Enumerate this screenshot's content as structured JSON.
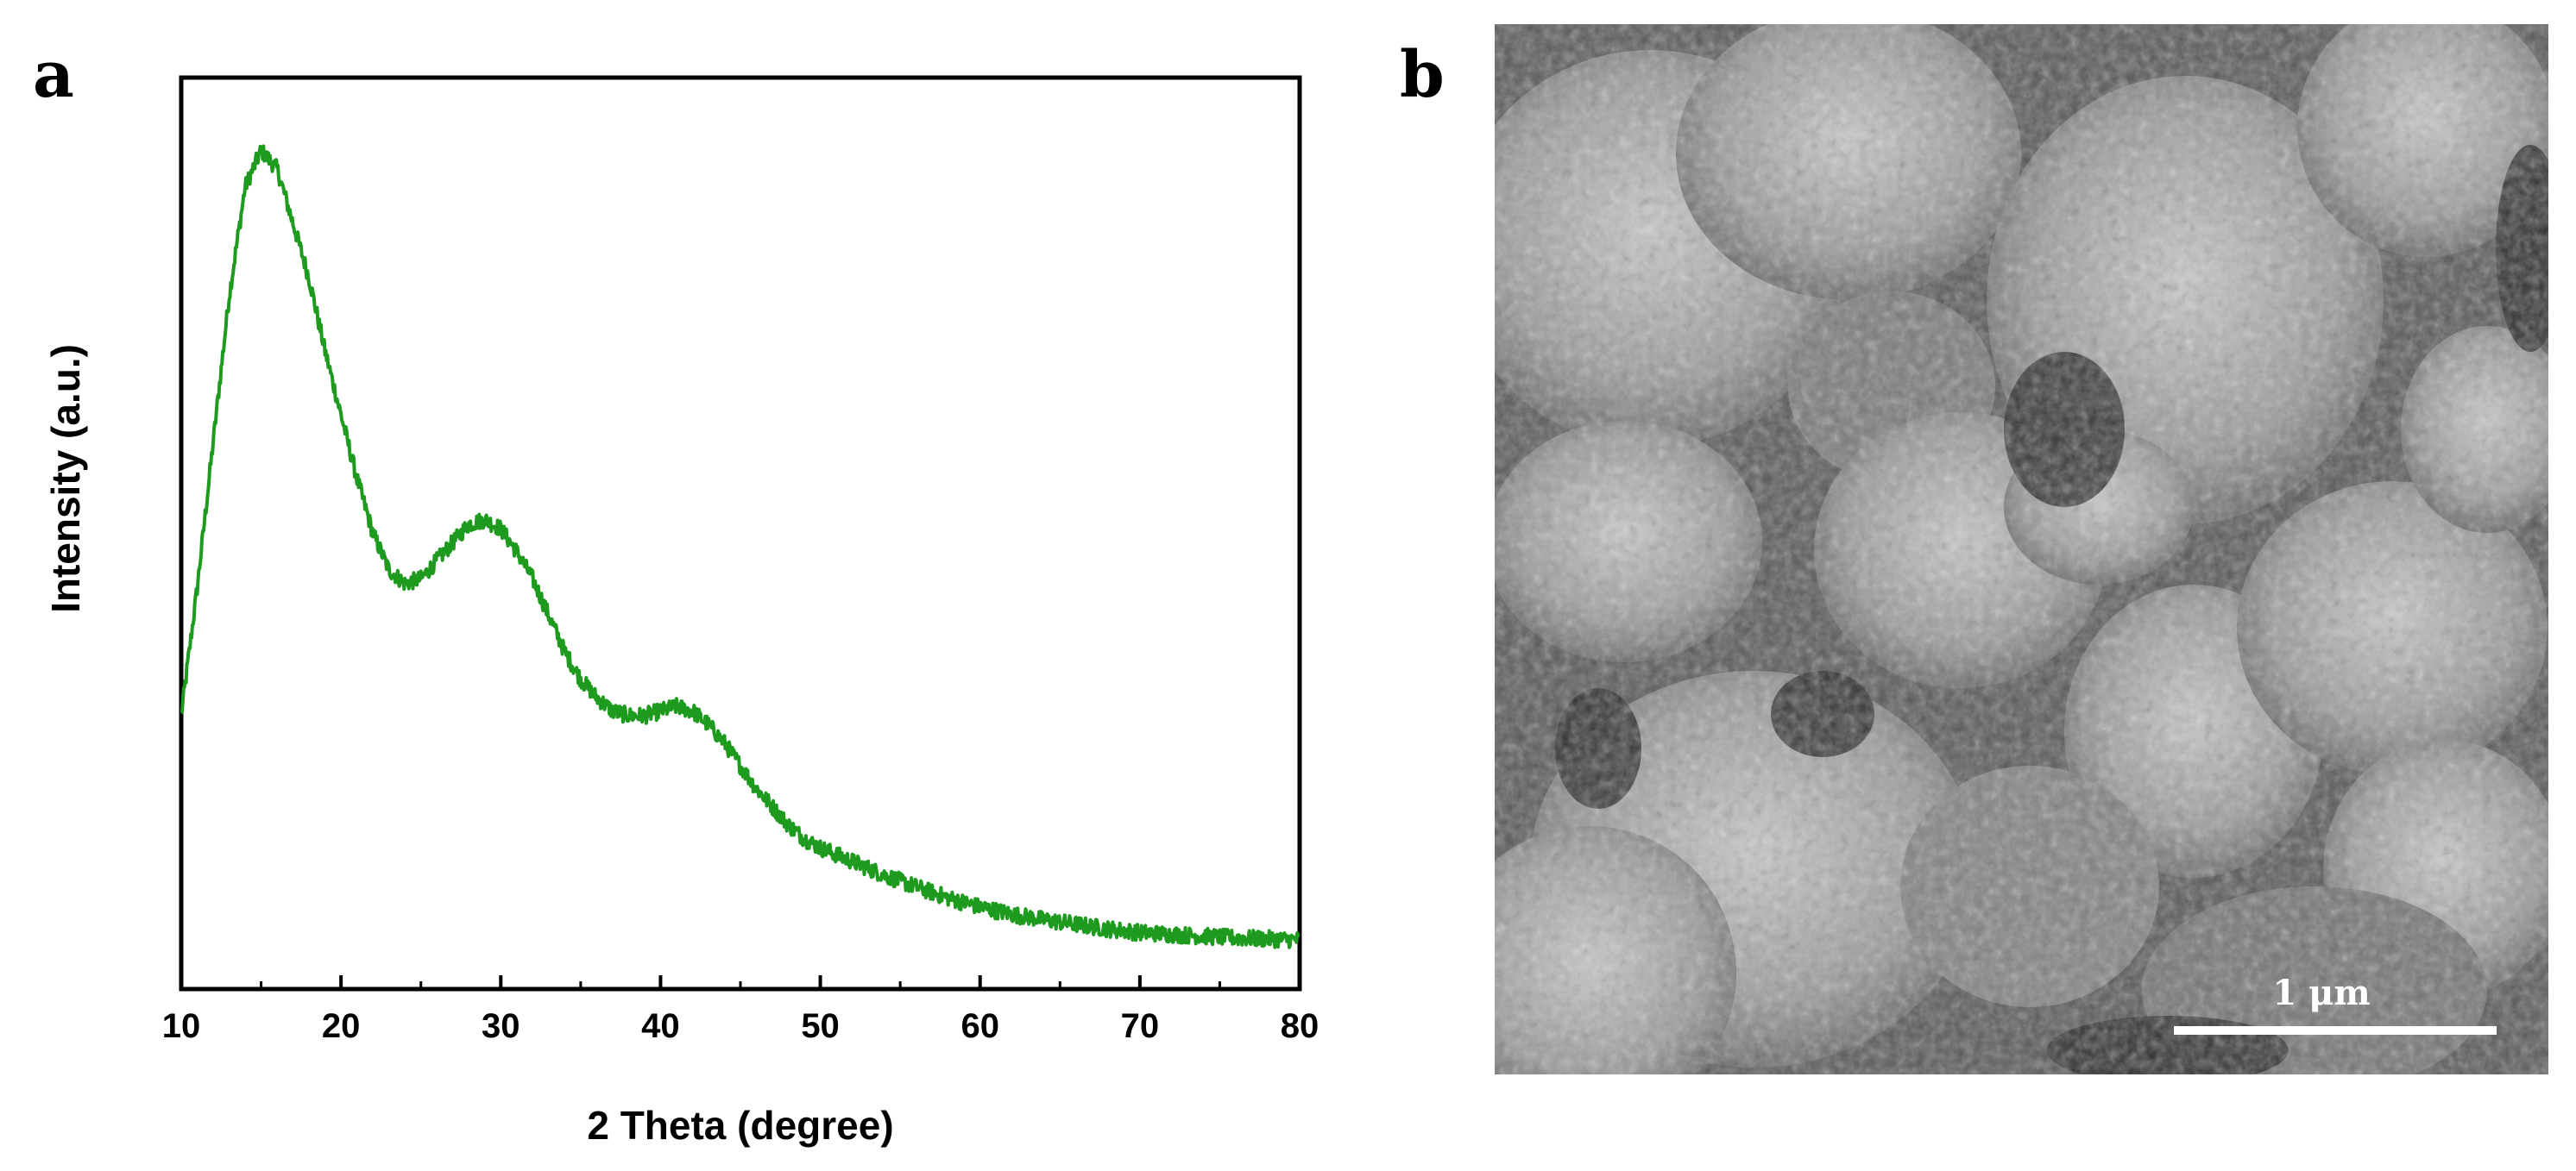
{
  "panels": {
    "a_label": "a",
    "b_label": "b"
  },
  "chart_data": {
    "type": "line",
    "title": "",
    "xlabel": "2 Theta (degree)",
    "ylabel": "Intensity (a.u.)",
    "xlim": [
      10,
      80
    ],
    "ylim": [
      0,
      1
    ],
    "xticks": [
      10,
      20,
      30,
      40,
      50,
      60,
      70,
      80
    ],
    "xtick_labels": [
      "10",
      "20",
      "30",
      "40",
      "50",
      "60",
      "70",
      "80"
    ],
    "yticks_shown": false,
    "grid": false,
    "legend": "none",
    "series": [
      {
        "color": "#1e9a1e",
        "x": [
          10,
          11,
          12,
          13,
          14,
          15,
          16,
          17,
          18,
          19,
          20,
          21,
          22,
          23,
          24,
          25,
          26,
          27,
          28,
          29,
          30,
          31,
          32,
          33,
          34,
          35,
          36,
          37,
          38,
          39,
          40,
          41,
          42,
          43,
          44,
          45,
          46,
          47,
          48,
          49,
          50,
          52,
          54,
          56,
          58,
          60,
          62,
          64,
          66,
          68,
          70,
          72,
          74,
          76,
          78,
          80
        ],
        "y": [
          0.3,
          0.44,
          0.6,
          0.76,
          0.88,
          0.92,
          0.9,
          0.84,
          0.78,
          0.7,
          0.63,
          0.56,
          0.5,
          0.46,
          0.445,
          0.45,
          0.47,
          0.49,
          0.51,
          0.515,
          0.505,
          0.48,
          0.45,
          0.41,
          0.37,
          0.34,
          0.32,
          0.305,
          0.3,
          0.3,
          0.305,
          0.31,
          0.305,
          0.29,
          0.27,
          0.245,
          0.22,
          0.2,
          0.18,
          0.165,
          0.155,
          0.14,
          0.125,
          0.112,
          0.1,
          0.09,
          0.082,
          0.076,
          0.071,
          0.066,
          0.062,
          0.06,
          0.058,
          0.056,
          0.055,
          0.054
        ]
      }
    ]
  },
  "sem_image": {
    "scale_label": "1 μm"
  }
}
